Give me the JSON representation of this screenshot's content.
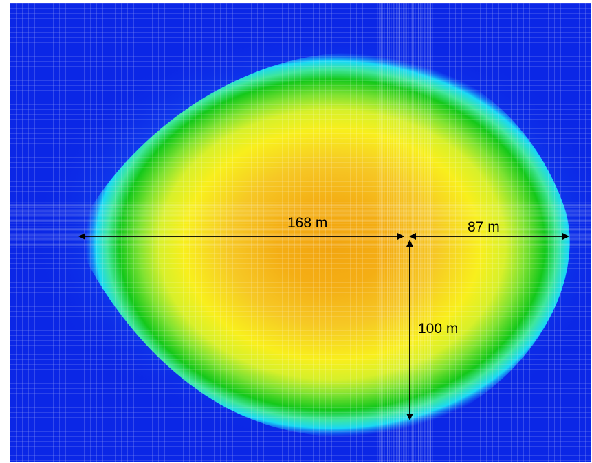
{
  "figure": {
    "colormap": [
      "#0000e6",
      "#1a6cff",
      "#17d6ff",
      "#31e36d",
      "#11cc11",
      "#aaee33",
      "#f7f21c",
      "#f6c624",
      "#f3aa12"
    ],
    "background_color": "#0b27e6",
    "mesh_line_color": "#ffffff",
    "arrow_color": "#000000"
  },
  "dimensions": [
    {
      "label": "168 m",
      "value_m": 168,
      "direction": "horizontal-left"
    },
    {
      "label": "87 m",
      "value_m": 87,
      "direction": "horizontal-right"
    },
    {
      "label": "100 m",
      "value_m": 100,
      "direction": "vertical-down"
    }
  ]
}
